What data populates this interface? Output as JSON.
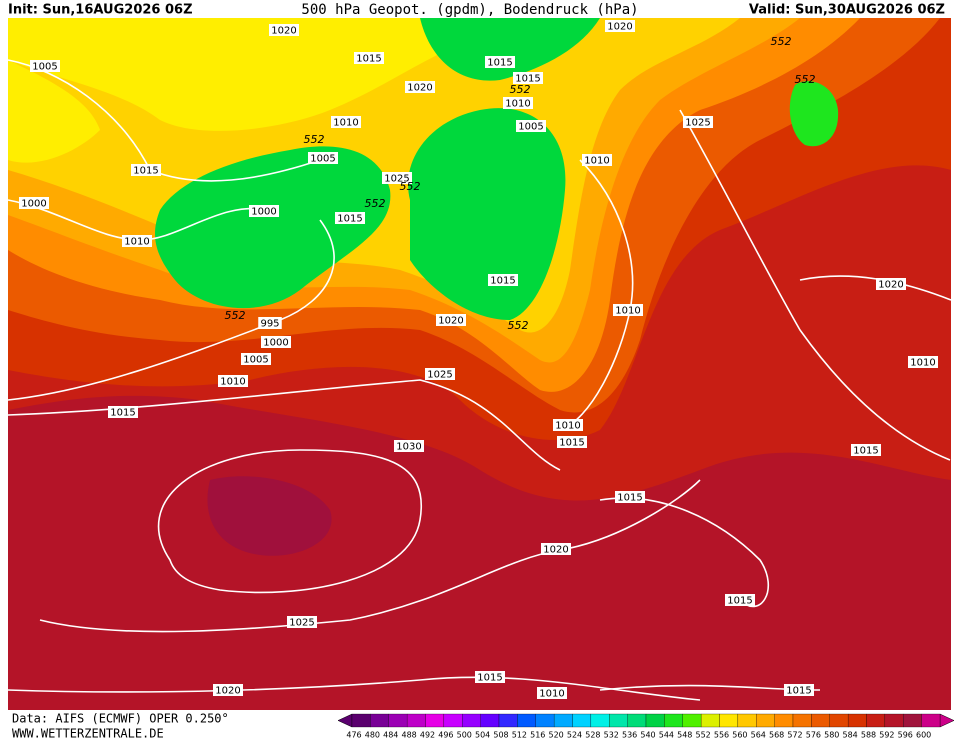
{
  "header": {
    "init": "Init: Sun,16AUG2026 06Z",
    "title": "500 hPa Geopot. (gpdm), Bodendruck (hPa)",
    "valid": "Valid: Sun,30AUG2026 06Z"
  },
  "isobar_labels": [
    "1020",
    "1005",
    "1015",
    "1015",
    "1020",
    "552",
    "1015",
    "552",
    "1010",
    "552",
    "1020",
    "1010",
    "1005",
    "1025",
    "552",
    "1005",
    "1015",
    "1010",
    "1025",
    "552",
    "1000",
    "552",
    "1000",
    "1015",
    "1010",
    "1015",
    "1020",
    "552",
    "995",
    "1010",
    "1020",
    "552",
    "1000",
    "1005",
    "1010",
    "1010",
    "1025",
    "1015",
    "1010",
    "1015",
    "1030",
    "1015",
    "1015",
    "1020",
    "1015",
    "1025",
    "1015",
    "1010",
    "1015",
    "1020"
  ],
  "footer": {
    "data": "Data: AIFS (ECMWF) OPER 0.250°",
    "site": "WWW.WETTERZENTRALE.DE"
  },
  "colorbar": {
    "labels": [
      "476",
      "480",
      "484",
      "488",
      "492",
      "496",
      "500",
      "504",
      "508",
      "512",
      "516",
      "520",
      "524",
      "528",
      "532",
      "536",
      "540",
      "544",
      "548",
      "552",
      "556",
      "560",
      "564",
      "568",
      "572",
      "576",
      "580",
      "584",
      "588",
      "592",
      "596",
      "600"
    ],
    "colors": [
      "#5a006e",
      "#780096",
      "#9b00b4",
      "#be00c8",
      "#e600e6",
      "#c800ff",
      "#9600ff",
      "#6400ff",
      "#3228ff",
      "#005aff",
      "#0082ff",
      "#00aaff",
      "#00d2ff",
      "#00f0e6",
      "#00e6aa",
      "#00dc78",
      "#00d246",
      "#1ee61e",
      "#50f000",
      "#dcf000",
      "#ffe600",
      "#ffc800",
      "#ffaa00",
      "#ff8c00",
      "#f57300",
      "#eb5a00",
      "#e14600",
      "#d73200",
      "#c81e14",
      "#b41428",
      "#a0143c",
      "#cc0088"
    ]
  }
}
